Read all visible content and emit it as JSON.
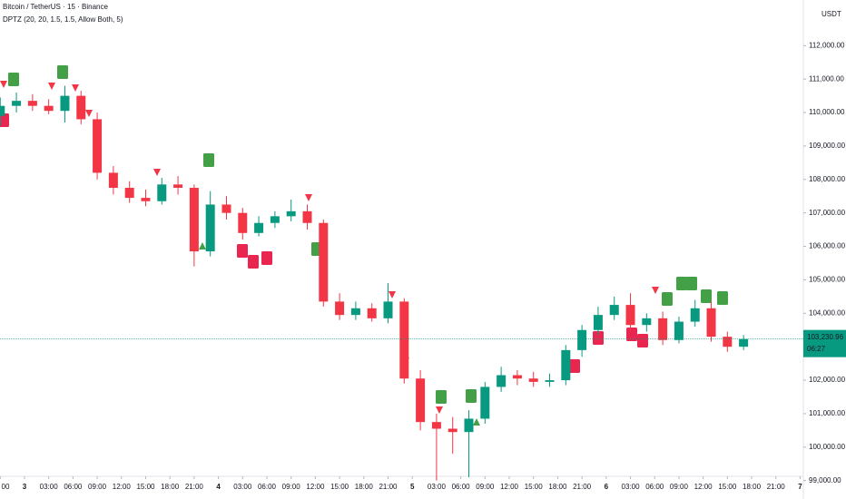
{
  "chart_data": {
    "type": "candlestick",
    "title": "Bitcoin / TetherUS · 15 · Binance",
    "subtitle": "DPTZ (20, 20, 1.5, 1.5, Allow Both, 5)",
    "y_axis_unit": "USDT",
    "up_color": "#089981",
    "down_color": "#f23645",
    "x": [
      -3,
      -1,
      1,
      3,
      5,
      7,
      9,
      11,
      13,
      15,
      17,
      19,
      21,
      23,
      25,
      27,
      29,
      31,
      33,
      35,
      37,
      39,
      41,
      43,
      45,
      47,
      49,
      51,
      53,
      55,
      57,
      59,
      61,
      63,
      65,
      67,
      69,
      71,
      73,
      75,
      77,
      79,
      81,
      83,
      85,
      87,
      89
    ],
    "open": [
      109900,
      110200,
      110350,
      110200,
      110050,
      110500,
      109800,
      108200,
      107750,
      107450,
      107350,
      107850,
      107750,
      105850,
      107250,
      107000,
      106400,
      106700,
      106900,
      107050,
      106700,
      104350,
      103950,
      104150,
      103850,
      104350,
      102050,
      100750,
      100550,
      100450,
      100850,
      101800,
      102150,
      102050,
      101950,
      102000,
      102900,
      103500,
      103950,
      104250,
      103650,
      103850,
      103200,
      103750,
      104150,
      103300,
      103000
    ],
    "high": [
      110450,
      110600,
      110550,
      110400,
      110800,
      110650,
      110000,
      108400,
      107950,
      107700,
      108050,
      108100,
      107850,
      107650,
      107500,
      107150,
      106900,
      107050,
      107400,
      107250,
      106800,
      104600,
      104350,
      104300,
      104900,
      104450,
      102300,
      101000,
      100900,
      101100,
      101950,
      102400,
      102300,
      102250,
      102200,
      103050,
      103650,
      104200,
      104500,
      104600,
      104000,
      104050,
      103900,
      104400,
      104350,
      103450,
      103350
    ],
    "low": [
      109600,
      110000,
      110050,
      109950,
      109700,
      109650,
      108000,
      107550,
      107300,
      107200,
      107250,
      107550,
      105400,
      105700,
      106800,
      106200,
      106300,
      106550,
      106750,
      106500,
      104200,
      103800,
      103800,
      103750,
      103700,
      101900,
      100500,
      99000,
      99800,
      99100,
      100700,
      101650,
      101850,
      101800,
      101800,
      101850,
      102700,
      103350,
      103800,
      103450,
      103450,
      103050,
      103100,
      103600,
      103150,
      102850,
      102900
    ],
    "close": [
      110200,
      110350,
      110200,
      110050,
      110500,
      109800,
      108200,
      107750,
      107450,
      107350,
      107850,
      107750,
      105850,
      107250,
      107000,
      106400,
      106700,
      106900,
      107050,
      106700,
      104350,
      103950,
      104150,
      103850,
      104350,
      102050,
      100750,
      100550,
      100450,
      100850,
      101800,
      102150,
      102050,
      101950,
      102000,
      102900,
      103500,
      103950,
      104250,
      103650,
      103850,
      103200,
      103750,
      104150,
      103300,
      103000,
      103230
    ],
    "xlim": [
      -3.03,
      96.4
    ],
    "ylim": [
      98449,
      113364
    ],
    "xticks": [
      {
        "value": -3,
        "label": "00"
      },
      {
        "value": 0,
        "label": "3"
      },
      {
        "value": 3,
        "label": "03:00"
      },
      {
        "value": 6,
        "label": "06:00"
      },
      {
        "value": 9,
        "label": "09:00"
      },
      {
        "value": 12,
        "label": "12:00"
      },
      {
        "value": 15,
        "label": "15:00"
      },
      {
        "value": 18,
        "label": "18:00"
      },
      {
        "value": 21,
        "label": "21:00"
      },
      {
        "value": 24,
        "label": "4"
      },
      {
        "value": 27,
        "label": "03:00"
      },
      {
        "value": 30,
        "label": "06:00"
      },
      {
        "value": 33,
        "label": "09:00"
      },
      {
        "value": 36,
        "label": "12:00"
      },
      {
        "value": 39,
        "label": "15:00"
      },
      {
        "value": 42,
        "label": "18:00"
      },
      {
        "value": 45,
        "label": "21:00"
      },
      {
        "value": 48,
        "label": "5"
      },
      {
        "value": 51,
        "label": "03:00"
      },
      {
        "value": 54,
        "label": "06:00"
      },
      {
        "value": 57,
        "label": "09:00"
      },
      {
        "value": 60,
        "label": "12:00"
      },
      {
        "value": 63,
        "label": "15:00"
      },
      {
        "value": 66,
        "label": "18:00"
      },
      {
        "value": 69,
        "label": "21:00"
      },
      {
        "value": 72,
        "label": "6"
      },
      {
        "value": 75,
        "label": "03:00"
      },
      {
        "value": 78,
        "label": "06:00"
      },
      {
        "value": 81,
        "label": "09:00"
      },
      {
        "value": 84,
        "label": "12:00"
      },
      {
        "value": 87,
        "label": "15:00"
      },
      {
        "value": 90,
        "label": "18:00"
      },
      {
        "value": 93,
        "label": "21:00"
      },
      {
        "value": 96,
        "label": "7"
      }
    ],
    "yticks": [
      {
        "value": 99000,
        "label": "99,000.00"
      },
      {
        "value": 100000,
        "label": "100,000.00"
      },
      {
        "value": 101000,
        "label": "101,000.00"
      },
      {
        "value": 102000,
        "label": "102,000.00"
      },
      {
        "value": 104000,
        "label": "104,000.00"
      },
      {
        "value": 105000,
        "label": "105,000.00"
      },
      {
        "value": 106000,
        "label": "106,000.00"
      },
      {
        "value": 107000,
        "label": "107,000.00"
      },
      {
        "value": 108000,
        "label": "108,000.00"
      },
      {
        "value": 109000,
        "label": "109,000.00"
      },
      {
        "value": 110000,
        "label": "110,000.00"
      },
      {
        "value": 111000,
        "label": "111,000.00"
      },
      {
        "value": 112000,
        "label": "112,000.00"
      }
    ],
    "current_price": {
      "value": 103230.96,
      "label": "103,230.96"
    },
    "countdown": "06:27"
  }
}
